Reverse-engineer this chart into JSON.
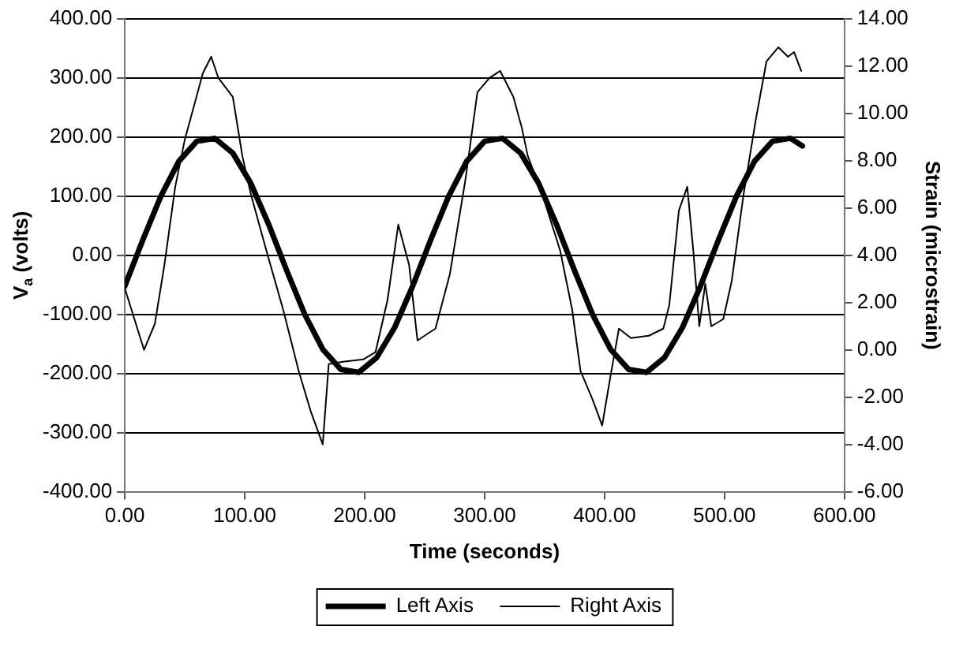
{
  "chart_data": {
    "type": "line",
    "xlabel": "Time (seconds)",
    "ylabel": "V$_{a}$ (volts)",
    "y2label": "Strain (microstrain)",
    "xlim": [
      0,
      600
    ],
    "xticks": [
      {
        "value": 0,
        "label": "0.00"
      },
      {
        "value": 100,
        "label": "100.00"
      },
      {
        "value": 200,
        "label": "200.00"
      },
      {
        "value": 300,
        "label": "300.00"
      },
      {
        "value": 400,
        "label": "400.00"
      },
      {
        "value": 500,
        "label": "500.00"
      },
      {
        "value": 600,
        "label": "600.00"
      }
    ],
    "ylim": [
      -400,
      400
    ],
    "yticks": [
      {
        "value": -400,
        "label": "-400.00"
      },
      {
        "value": -300,
        "label": "-300.00"
      },
      {
        "value": -200,
        "label": "-200.00"
      },
      {
        "value": -100,
        "label": "-100.00"
      },
      {
        "value": 0,
        "label": "0.00"
      },
      {
        "value": 100,
        "label": "100.00"
      },
      {
        "value": 200,
        "label": "200.00"
      },
      {
        "value": 300,
        "label": "300.00"
      },
      {
        "value": 400,
        "label": "400.00"
      }
    ],
    "y2lim": [
      -6,
      14
    ],
    "y2ticks": [
      {
        "value": -6,
        "label": "-6.00"
      },
      {
        "value": -4,
        "label": "-4.00"
      },
      {
        "value": -2,
        "label": "-2.00"
      },
      {
        "value": 0,
        "label": "0.00"
      },
      {
        "value": 2,
        "label": "2.00"
      },
      {
        "value": 4,
        "label": "4.00"
      },
      {
        "value": 6,
        "label": "6.00"
      },
      {
        "value": 8,
        "label": "8.00"
      },
      {
        "value": 10,
        "label": "10.00"
      },
      {
        "value": 12,
        "label": "12.00"
      },
      {
        "value": 14,
        "label": "14.00"
      }
    ],
    "grid": "y",
    "legend": "bottom",
    "marker": "none",
    "line_style": "solid",
    "series": [
      {
        "name": "Left Axis",
        "color": "#000000",
        "x": [
          0,
          15,
          30,
          45,
          60,
          75,
          90,
          105,
          120,
          135,
          150,
          165,
          180,
          195,
          210,
          225,
          240,
          255,
          270,
          285,
          300,
          315,
          330,
          345,
          360,
          375,
          390,
          405,
          420,
          435,
          450,
          465,
          480,
          495,
          510,
          525,
          540,
          555,
          565
        ],
        "values": [
          -52,
          26,
          100,
          159,
          193,
          198,
          173,
          122,
          52,
          -26,
          -100,
          -159,
          -193,
          -198,
          -173,
          -122,
          -52,
          26,
          100,
          159,
          193,
          198,
          173,
          122,
          52,
          -26,
          -100,
          -159,
          -193,
          -198,
          -173,
          -122,
          -52,
          26,
          100,
          159,
          193,
          198,
          185
        ]
      },
      {
        "name": "Right Axis",
        "color": "#000000",
        "axis": "y2",
        "x": [
          0,
          16,
          25,
          33,
          42,
          50,
          57,
          65,
          72,
          78,
          90,
          98,
          105,
          118,
          132,
          145,
          155,
          165,
          170,
          182,
          199,
          209,
          219,
          228,
          237,
          244,
          259,
          271,
          284,
          294,
          304,
          313,
          324,
          331,
          336,
          348,
          363,
          373,
          380,
          390,
          398,
          405,
          412,
          422,
          437,
          449,
          454,
          462,
          469,
          474,
          479,
          484,
          489,
          499,
          506,
          516,
          526,
          535,
          545,
          553,
          558,
          564
        ],
        "values": [
          2.6,
          0.0,
          1.1,
          3.6,
          6.9,
          8.9,
          10.2,
          11.7,
          12.4,
          11.5,
          10.7,
          8.2,
          6.6,
          4.2,
          1.7,
          -0.9,
          -2.6,
          -4.0,
          -0.6,
          -0.5,
          -0.4,
          -0.1,
          2.1,
          5.3,
          3.6,
          0.4,
          0.9,
          3.2,
          7.2,
          10.9,
          11.5,
          11.8,
          10.7,
          9.4,
          8.2,
          6.6,
          4.2,
          1.7,
          -0.9,
          -2.1,
          -3.2,
          -1.1,
          0.9,
          0.5,
          0.6,
          0.9,
          1.9,
          5.9,
          6.9,
          4.2,
          1.0,
          2.8,
          1.0,
          1.3,
          2.9,
          6.6,
          9.7,
          12.2,
          12.8,
          12.4,
          12.6,
          11.8
        ]
      }
    ]
  }
}
